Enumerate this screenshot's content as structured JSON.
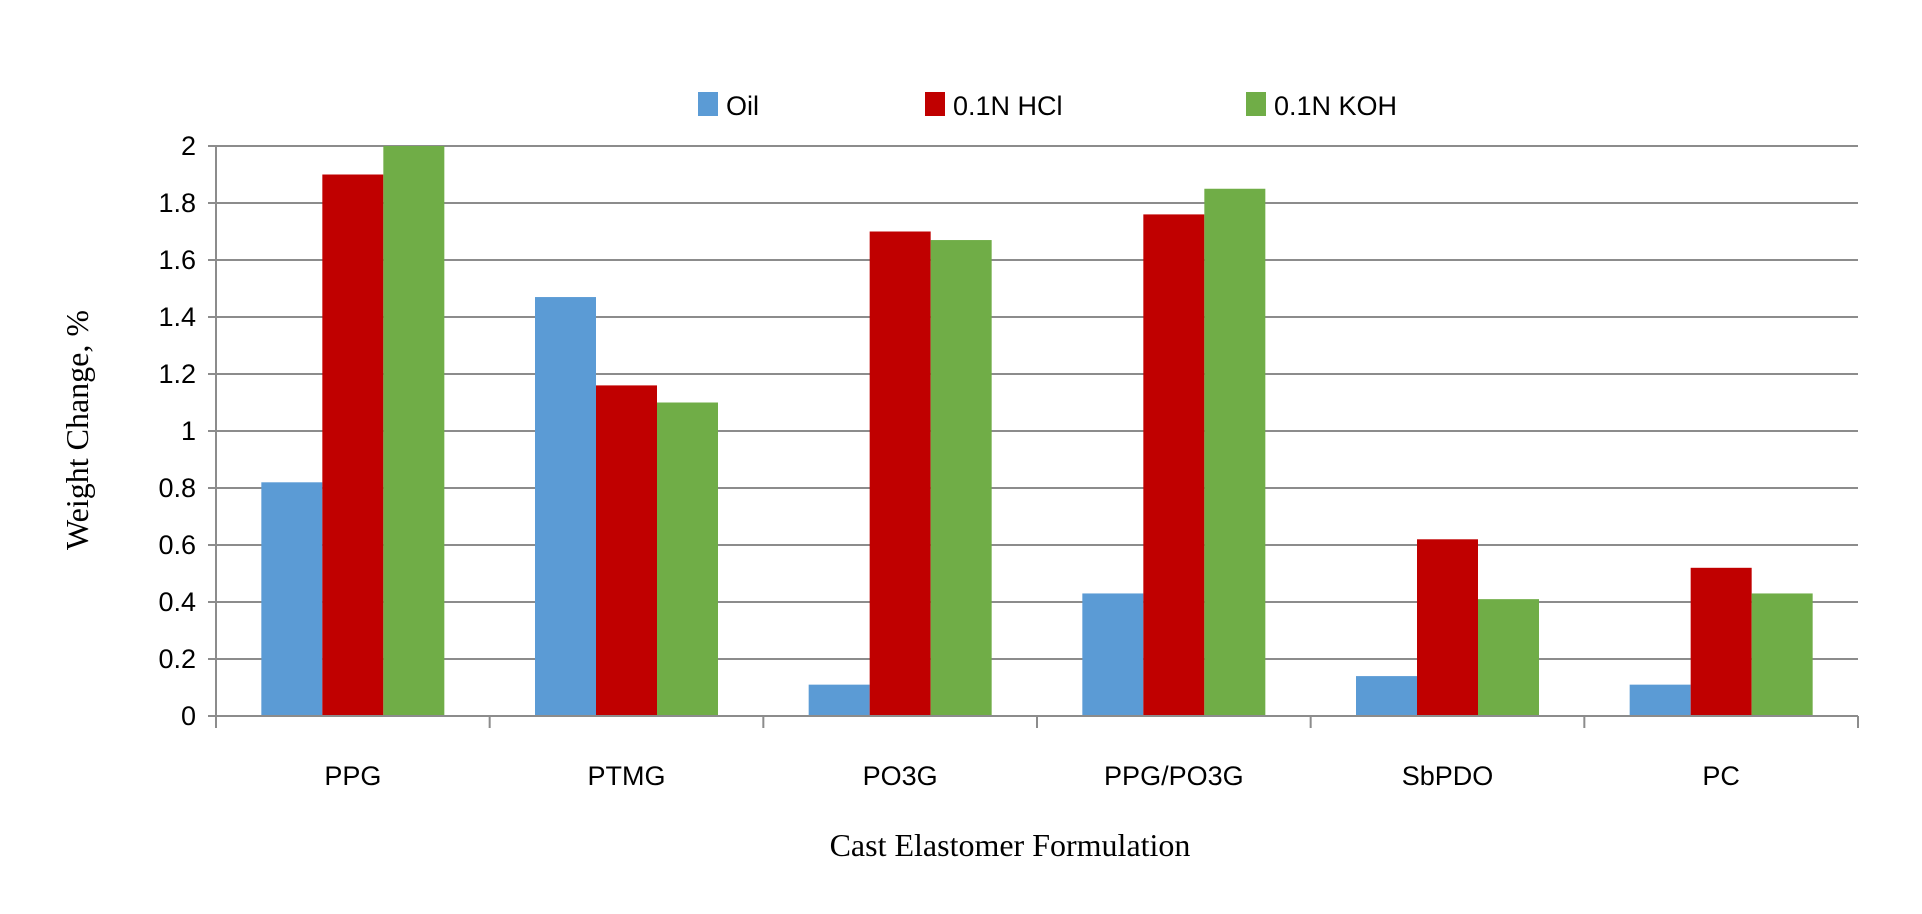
{
  "chart_data": {
    "type": "bar",
    "title": "",
    "xlabel": "Cast Elastomer Formulation",
    "ylabel": "Weight Change, %",
    "ylim": [
      0,
      2
    ],
    "yticks": [
      "0",
      "0.2",
      "0.4",
      "0.6",
      "0.8",
      "1",
      "1.2",
      "1.4",
      "1.6",
      "1.8",
      "2"
    ],
    "grid": true,
    "legend_position": "top-center",
    "categories": [
      "PPG",
      "PTMG",
      "PO3G",
      "PPG/PO3G",
      "SbPDO",
      "PC"
    ],
    "series": [
      {
        "name": "Oil",
        "color": "#5B9BD5",
        "values": [
          0.82,
          1.47,
          0.11,
          0.43,
          0.14,
          0.11
        ]
      },
      {
        "name": "0.1N HCl",
        "color": "#C00000",
        "values": [
          1.9,
          1.16,
          1.7,
          1.76,
          0.62,
          0.52
        ]
      },
      {
        "name": "0.1N KOH",
        "color": "#70AD47",
        "values": [
          2.0,
          1.1,
          1.67,
          1.85,
          0.41,
          0.43
        ]
      }
    ]
  }
}
